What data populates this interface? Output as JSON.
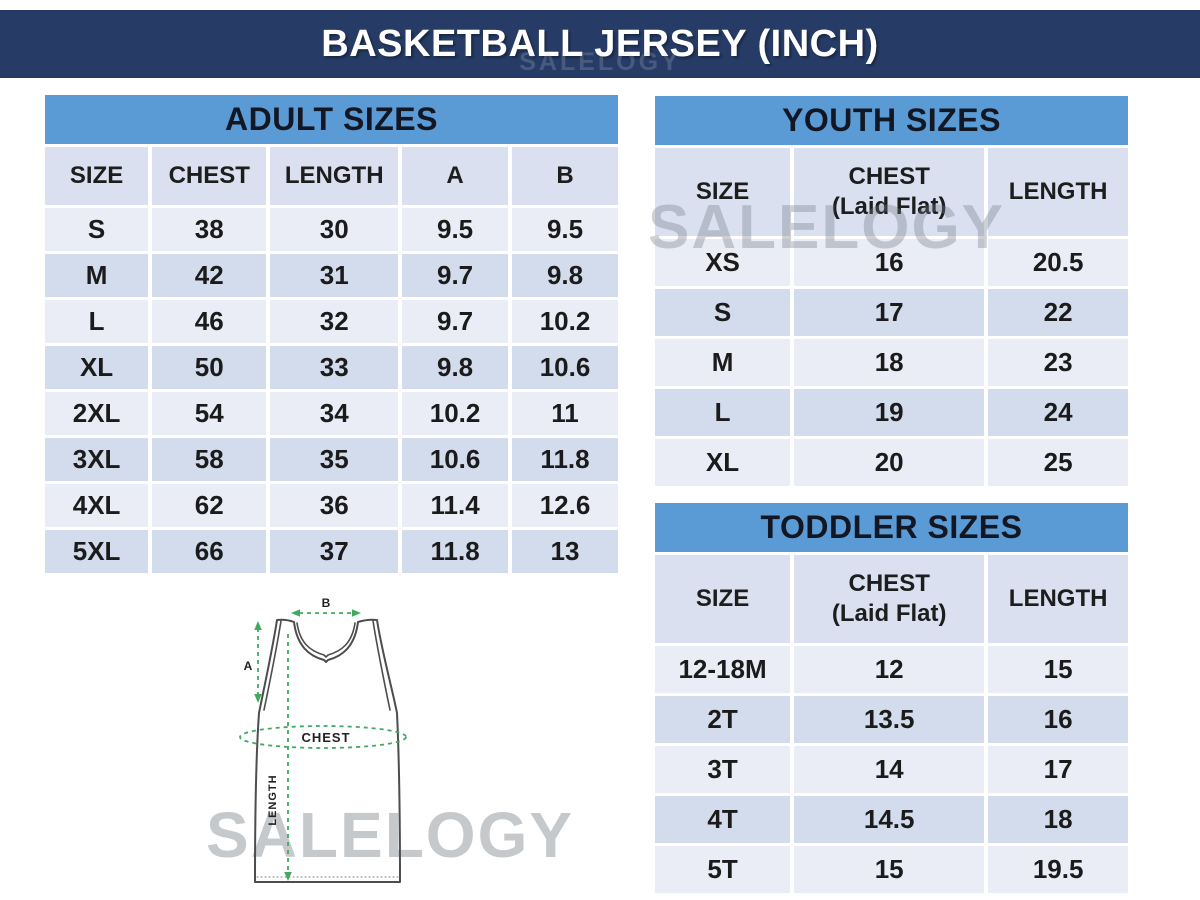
{
  "watermark": "SALELOGY",
  "banner": {
    "title": "BASKETBALL JERSEY (INCH)"
  },
  "adult": {
    "title": "ADULT SIZES",
    "columns": [
      "SIZE",
      "CHEST",
      "LENGTH",
      "A",
      "B"
    ],
    "rows": [
      [
        "S",
        "38",
        "30",
        "9.5",
        "9.5"
      ],
      [
        "M",
        "42",
        "31",
        "9.7",
        "9.8"
      ],
      [
        "L",
        "46",
        "32",
        "9.7",
        "10.2"
      ],
      [
        "XL",
        "50",
        "33",
        "9.8",
        "10.6"
      ],
      [
        "2XL",
        "54",
        "34",
        "10.2",
        "11"
      ],
      [
        "3XL",
        "58",
        "35",
        "10.6",
        "11.8"
      ],
      [
        "4XL",
        "62",
        "36",
        "11.4",
        "12.6"
      ],
      [
        "5XL",
        "66",
        "37",
        "11.8",
        "13"
      ]
    ]
  },
  "youth": {
    "title": "YOUTH SIZES",
    "columns": [
      "SIZE",
      "CHEST\n(Laid Flat)",
      "LENGTH"
    ],
    "rows": [
      [
        "XS",
        "16",
        "20.5"
      ],
      [
        "S",
        "17",
        "22"
      ],
      [
        "M",
        "18",
        "23"
      ],
      [
        "L",
        "19",
        "24"
      ],
      [
        "XL",
        "20",
        "25"
      ]
    ]
  },
  "toddler": {
    "title": "TODDLER SIZES",
    "columns": [
      "SIZE",
      "CHEST\n(Laid Flat)",
      "LENGTH"
    ],
    "rows": [
      [
        "12-18M",
        "12",
        "15"
      ],
      [
        "2T",
        "13.5",
        "16"
      ],
      [
        "3T",
        "14",
        "17"
      ],
      [
        "4T",
        "14.5",
        "18"
      ],
      [
        "5T",
        "15",
        "19.5"
      ]
    ]
  },
  "diagram": {
    "label_a": "A",
    "label_b": "B",
    "label_chest": "CHEST",
    "label_length": "LENGTH"
  },
  "colors": {
    "banner_navy": "#263c66",
    "accent_blue": "#5b9bd5",
    "header_row": "#dae0ef",
    "row_light": "#eaedf6",
    "row_dark": "#d3dcec",
    "measure_green": "#43a95e"
  }
}
